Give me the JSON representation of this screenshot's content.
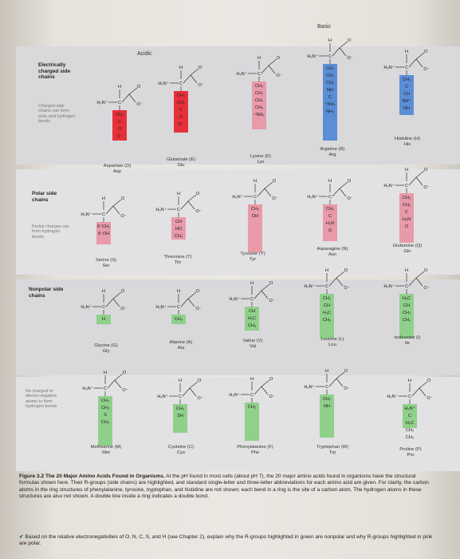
{
  "headings": {
    "acidic": "Acidic",
    "basic": "Basic"
  },
  "rows": [
    {
      "label": "Electrically charged side chains",
      "note": "Charged side chains can form ionic and hydrogen bonds",
      "color": "#e89aa8"
    },
    {
      "label": "Polar side chains",
      "note": "Partial charges can form hydrogen bonds",
      "color": "#e89aa8"
    },
    {
      "label": "Nonpolar side chains",
      "note": "",
      "color": "#8fd08a"
    },
    {
      "label": "",
      "note": "No charged or electro-negative atoms to form hydrogen bonds",
      "color": "#8fd08a"
    }
  ],
  "amino_acids": [
    {
      "name": "Aspartate (D)",
      "abbr": "Asp"
    },
    {
      "name": "Glutamate (E)",
      "abbr": "Glu"
    },
    {
      "name": "Lysine (K)",
      "abbr": "Lys"
    },
    {
      "name": "Arginine (R)",
      "abbr": "Arg"
    },
    {
      "name": "Histidine (H)",
      "abbr": "His"
    },
    {
      "name": "Serine (S)",
      "abbr": "Ser"
    },
    {
      "name": "Threonine (T)",
      "abbr": "Thr"
    },
    {
      "name": "Tyrosine (Y)",
      "abbr": "Tyr"
    },
    {
      "name": "Asparagine (N)",
      "abbr": "Asn"
    },
    {
      "name": "Glutamine (Q)",
      "abbr": "Gln"
    },
    {
      "name": "Glycine (G)",
      "abbr": "Gly"
    },
    {
      "name": "Alanine (A)",
      "abbr": "Ala"
    },
    {
      "name": "Valine (V)",
      "abbr": "Val"
    },
    {
      "name": "Leucine (L)",
      "abbr": "Leu"
    },
    {
      "name": "Isoleucine (I)",
      "abbr": "Ile"
    },
    {
      "name": "Methionine (M)",
      "abbr": "Met"
    },
    {
      "name": "Cysteine (C)",
      "abbr": "Cys"
    },
    {
      "name": "Phenylalanine (F)",
      "abbr": "Phe"
    },
    {
      "name": "Tryptophan (W)",
      "abbr": "Trp"
    },
    {
      "name": "Proline (P)",
      "abbr": "Pro"
    }
  ],
  "backbone": {
    "h": "H",
    "amine": "H₃N⁺",
    "alpha_c": "C",
    "carboxyl_o": "O",
    "carboxyl_o_minus": "O⁻"
  },
  "side_chain_atoms": {
    "asp": [
      "CH₂",
      "C",
      "O",
      "O⁻"
    ],
    "glu": [
      "CH₂",
      "CH₂",
      "C",
      "O",
      "O⁻"
    ],
    "lys": [
      "CH₂",
      "CH₂",
      "CH₂",
      "CH₂",
      "⁺NH₃"
    ],
    "arg": [
      "CH₂",
      "CH₂",
      "CH₂",
      "NH",
      "C",
      "⁺NH₂",
      "NH₂"
    ],
    "his": [
      "CH₂",
      "C",
      "CH",
      "NH⁺",
      "NH"
    ],
    "ser": [
      "δ⁺CH₂",
      "δ⁻OH"
    ],
    "thr": [
      "CH",
      "HO",
      "CH₃"
    ],
    "tyr": [
      "CH₂",
      "OH"
    ],
    "asn": [
      "CH₂",
      "C",
      "H₂N",
      "O"
    ],
    "gln": [
      "CH₂",
      "CH₂",
      "C",
      "H₂N",
      "O"
    ],
    "gly": [
      "H"
    ],
    "ala": [
      "CH₃"
    ],
    "val": [
      "CH",
      "H₃C",
      "CH₃"
    ],
    "leu": [
      "CH₂",
      "CH",
      "H₃C",
      "CH₃"
    ],
    "ile": [
      "H₃C",
      "CH",
      "CH₂",
      "CH₃"
    ],
    "met": [
      "CH₂",
      "CH₂",
      "S",
      "CH₃"
    ],
    "cys": [
      "CH₂",
      "SH"
    ],
    "phe": [
      "CH₂"
    ],
    "trp": [
      "CH₂",
      "NH"
    ],
    "pro": [
      "H₂N⁺",
      "C",
      "H₂C",
      "CH₂",
      "CH₂"
    ]
  },
  "caption": {
    "figure_label": "Figure 3.2 The 20 Major Amino Acids Found in Organisms.",
    "text": "At the pH found in most cells (about pH 7), the 20 major amino acids found in organisms have the structural formulas shown here. Their R-groups (side chains) are highlighted, and standard single-letter and three-letter abbreviations for each amino acid are given. For clarity, the carbon atoms in the ring structures of phenylalanine, tyrosine, tryptophan, and histidine are not shown; each bend in a ring is the site of a carbon atom. The hydrogen atoms in these structures are also not shown. A double line inside a ring indicates a double bond."
  },
  "question": {
    "mark": "✔",
    "text": "Based on the relative electronegativities of O, N, C, S, and H (see Chapter 2), explain why the R-groups highlighted in green are nonpolar and why R-groups highlighted in pink are polar."
  },
  "colors": {
    "polar": "#e89aa8",
    "nonpolar": "#8fd08a",
    "acidic": "#e7303a",
    "basic": "#5a8ed6"
  }
}
